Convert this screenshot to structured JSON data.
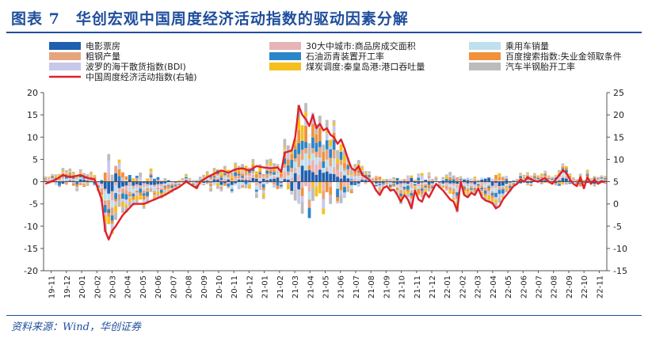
{
  "header": {
    "title": "图表 7　华创宏观中国周度经济活动指数的驱动因素分解"
  },
  "footer": {
    "source": "资料来源：Wind，华创证券"
  },
  "chart_data": {
    "type": "bar",
    "stacked": true,
    "title": "华创宏观中国周度经济活动指数的驱动因素分解",
    "x_tick_labels": [
      "19-11",
      "19-12",
      "20-01",
      "20-02",
      "20-03",
      "20-04",
      "20-05",
      "20-06",
      "20-07",
      "20-08",
      "20-09",
      "20-10",
      "20-11",
      "20-12",
      "21-01",
      "21-02",
      "21-03",
      "21-04",
      "21-05",
      "21-06",
      "21-07",
      "21-08",
      "21-09",
      "21-10",
      "21-11",
      "21-12",
      "22-01",
      "22-02",
      "22-03",
      "22-04",
      "22-05",
      "22-06",
      "22-07",
      "22-08",
      "22-09",
      "22-10",
      "22-11"
    ],
    "y_left": {
      "min": -20,
      "max": 20,
      "ticks": [
        -20,
        -15,
        -10,
        -5,
        0,
        5,
        10,
        15,
        20
      ]
    },
    "y_right": {
      "min": -15,
      "max": 25,
      "ticks": [
        -15,
        -10,
        -5,
        0,
        5,
        10,
        15,
        20,
        25
      ]
    },
    "series_colors": [
      "#1f5fb0",
      "#e8b4b8",
      "#bfe0ee",
      "#e6a47e",
      "#2a86c8",
      "#f0913c",
      "#c8c8ea",
      "#f5c01e",
      "#bcbcbc"
    ],
    "line_color": "#e0202a",
    "legend": [
      {
        "name": "电影票房",
        "color": "#1f5fb0"
      },
      {
        "name": "30大中城市:商品房成交面积",
        "color": "#e8b4b8"
      },
      {
        "name": "乘用车销量",
        "color": "#bfe0ee"
      },
      {
        "name": "粗钢产量",
        "color": "#e6a47e"
      },
      {
        "name": "石油沥青装置开工率",
        "color": "#2a86c8"
      },
      {
        "name": "百度搜索指数:失业金领取条件",
        "color": "#f0913c"
      },
      {
        "name": "波罗的海干散货指数(BDI)",
        "color": "#c8c8ea"
      },
      {
        "name": "煤炭调度:秦皇岛港:港口吞吐量",
        "color": "#f5c01e"
      },
      {
        "name": "汽车半钢胎开工率",
        "color": "#bcbcbc"
      },
      {
        "name": "中国周度经济活动指数(右轴)",
        "color": "#e0202a"
      }
    ],
    "weeks_total": 160,
    "index_keypoints_right_axis": [
      [
        0,
        4.5
      ],
      [
        3,
        5.5
      ],
      [
        5,
        6.5
      ],
      [
        7,
        6
      ],
      [
        10,
        6.5
      ],
      [
        12,
        5.8
      ],
      [
        14,
        5.5
      ],
      [
        16,
        1
      ],
      [
        17,
        -6
      ],
      [
        18,
        -8
      ],
      [
        19,
        -6
      ],
      [
        20,
        -5
      ],
      [
        22,
        -2.5
      ],
      [
        25,
        0
      ],
      [
        28,
        0
      ],
      [
        31,
        1
      ],
      [
        34,
        2
      ],
      [
        36,
        3
      ],
      [
        38,
        3.8
      ],
      [
        40,
        5
      ],
      [
        42,
        4
      ],
      [
        43,
        3.5
      ],
      [
        44,
        5
      ],
      [
        46,
        6
      ],
      [
        48,
        6.8
      ],
      [
        50,
        7.5
      ],
      [
        52,
        7
      ],
      [
        54,
        7.8
      ],
      [
        56,
        8
      ],
      [
        58,
        7.5
      ],
      [
        60,
        8.5
      ],
      [
        62,
        8.2
      ],
      [
        64,
        8
      ],
      [
        66,
        8.2
      ],
      [
        67,
        7.2
      ],
      [
        68,
        11.5
      ],
      [
        70,
        12
      ],
      [
        71,
        15
      ],
      [
        72,
        22
      ],
      [
        73,
        20
      ],
      [
        74,
        19
      ],
      [
        75,
        17.5
      ],
      [
        76,
        20
      ],
      [
        77,
        17
      ],
      [
        78,
        18
      ],
      [
        79,
        16.5
      ],
      [
        80,
        17
      ],
      [
        81,
        15.5
      ],
      [
        82,
        15
      ],
      [
        83,
        13.5
      ],
      [
        84,
        14.5
      ],
      [
        85,
        12.5
      ],
      [
        86,
        10
      ],
      [
        87,
        8
      ],
      [
        88,
        7.5
      ],
      [
        89,
        8.5
      ],
      [
        90,
        6.5
      ],
      [
        91,
        6
      ],
      [
        92,
        5.5
      ],
      [
        93,
        4.5
      ],
      [
        94,
        3
      ],
      [
        95,
        2
      ],
      [
        96,
        3.5
      ],
      [
        97,
        4
      ],
      [
        98,
        3
      ],
      [
        99,
        3.2
      ],
      [
        100,
        2
      ],
      [
        101,
        0.5
      ],
      [
        102,
        2
      ],
      [
        103,
        1
      ],
      [
        104,
        -1
      ],
      [
        105,
        3
      ],
      [
        106,
        1
      ],
      [
        107,
        0.5
      ],
      [
        108,
        2.5
      ],
      [
        109,
        1.5
      ],
      [
        110,
        3
      ],
      [
        111,
        4.5
      ],
      [
        113,
        3
      ],
      [
        114,
        2
      ],
      [
        115,
        1
      ],
      [
        116,
        0.5
      ],
      [
        117,
        -1.5
      ],
      [
        118,
        5
      ],
      [
        119,
        2
      ],
      [
        120,
        1.5
      ],
      [
        121,
        2.5
      ],
      [
        122,
        2
      ],
      [
        123,
        3.5
      ],
      [
        124,
        1.5
      ],
      [
        125,
        0.8
      ],
      [
        126,
        0.5
      ],
      [
        127,
        0.2
      ],
      [
        128,
        -1
      ],
      [
        129,
        -0.5
      ],
      [
        130,
        1
      ],
      [
        131,
        2
      ],
      [
        132,
        3
      ],
      [
        133,
        4
      ],
      [
        134,
        4.5
      ],
      [
        135,
        5.5
      ],
      [
        136,
        5
      ],
      [
        137,
        6
      ],
      [
        138,
        5.5
      ],
      [
        139,
        5.2
      ],
      [
        140,
        5
      ],
      [
        141,
        5.5
      ],
      [
        142,
        5.8
      ],
      [
        143,
        5
      ],
      [
        144,
        4.5
      ],
      [
        145,
        5.5
      ],
      [
        146,
        6.5
      ],
      [
        147,
        7.5
      ],
      [
        148,
        7
      ],
      [
        149,
        5.5
      ],
      [
        150,
        4.5
      ],
      [
        151,
        4
      ],
      [
        152,
        6
      ],
      [
        153,
        3.5
      ],
      [
        154,
        6
      ],
      [
        155,
        4.5
      ],
      [
        156,
        5.5
      ],
      [
        157,
        4.5
      ],
      [
        158,
        5
      ],
      [
        159,
        5
      ]
    ]
  }
}
